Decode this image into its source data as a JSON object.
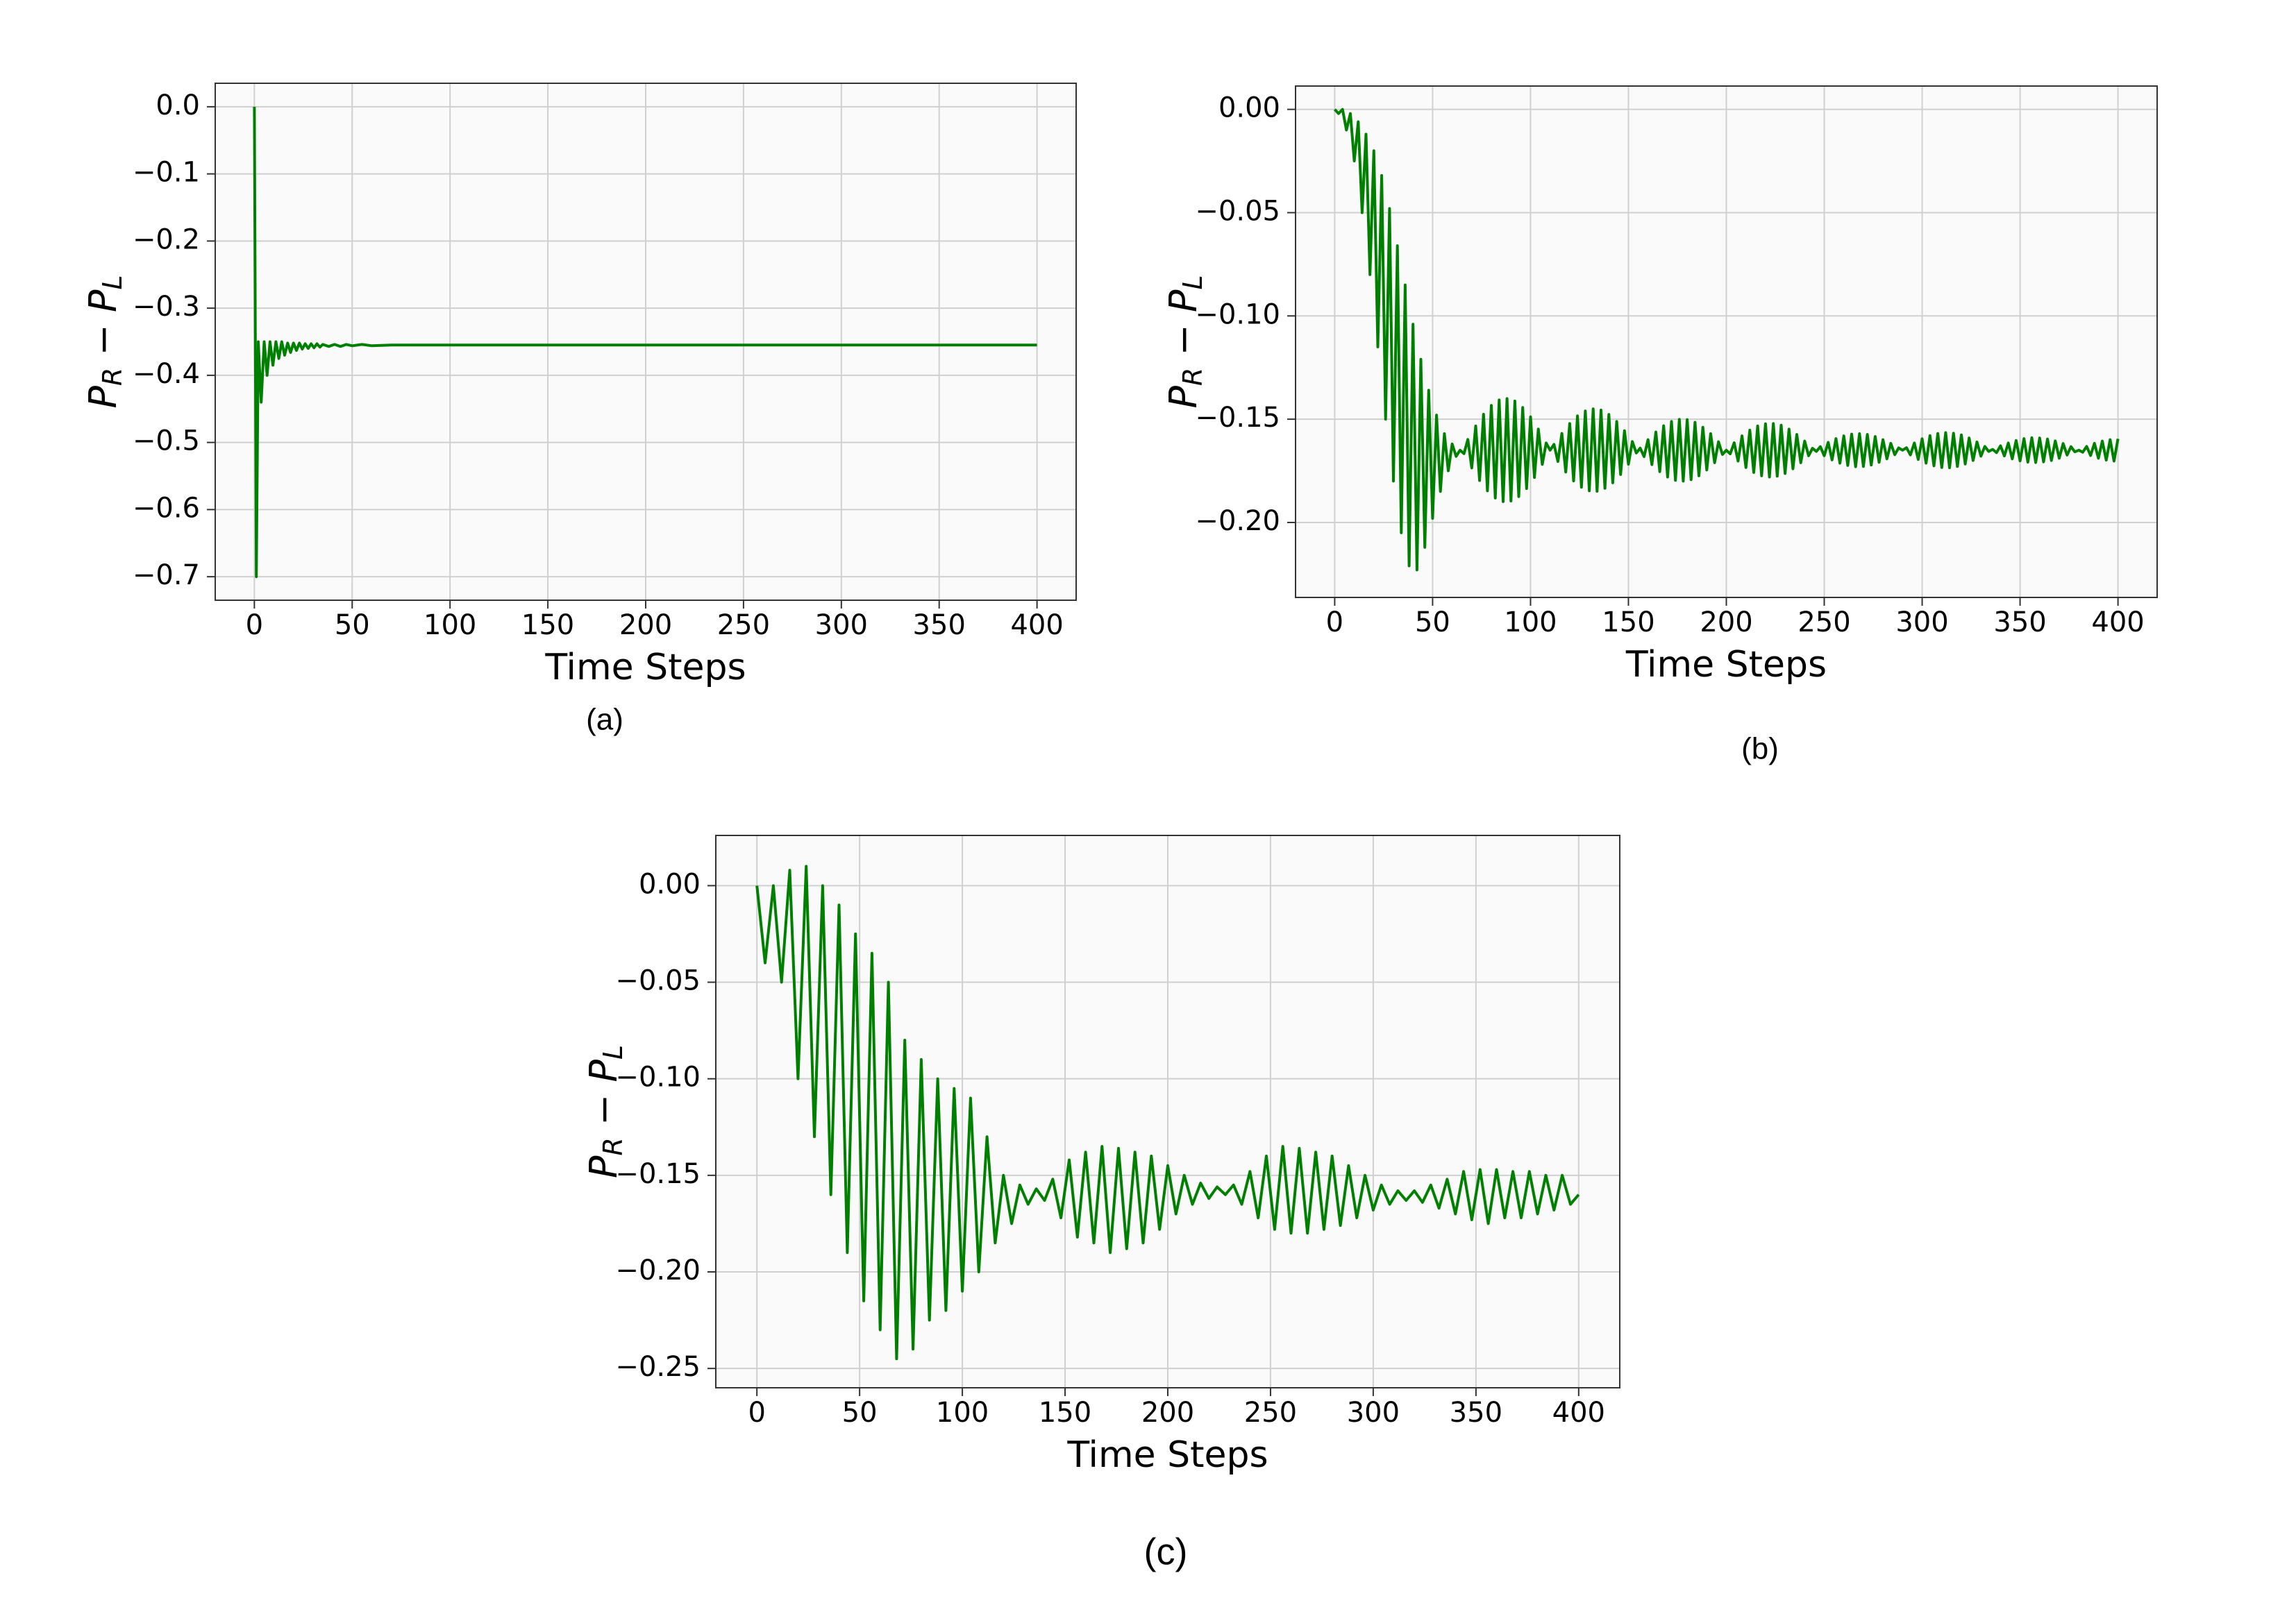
{
  "chart_data": [
    {
      "type": "line",
      "caption": "(a)",
      "xlabel": "Time Steps",
      "ylabel": "P_R − P_L",
      "color": "#008000",
      "grid": true,
      "xlim": [
        -20,
        420
      ],
      "ylim": [
        -0.735,
        0.035
      ],
      "xticks": [
        0,
        50,
        100,
        150,
        200,
        250,
        300,
        350,
        400
      ],
      "yticks": [
        {
          "value": 0,
          "label": "0.0"
        },
        {
          "value": -0.1,
          "label": "−0.1"
        },
        {
          "value": -0.2,
          "label": "−0.2"
        },
        {
          "value": -0.3,
          "label": "−0.3"
        },
        {
          "value": -0.4,
          "label": "−0.4"
        },
        {
          "value": -0.5,
          "label": "−0.5"
        },
        {
          "value": -0.6,
          "label": "−0.6"
        },
        {
          "value": -0.7,
          "label": "−0.7"
        }
      ],
      "x": [
        0,
        1,
        2,
        3.5,
        5,
        6.5,
        8,
        9.5,
        11,
        12.5,
        14,
        15.5,
        17,
        18.5,
        20,
        21.5,
        23,
        24.5,
        26,
        27.5,
        29,
        30.5,
        32,
        33.5,
        35,
        38,
        41,
        44,
        47,
        50,
        55,
        60,
        70,
        80,
        100,
        150,
        200,
        250,
        300,
        350,
        400
      ],
      "values": [
        0,
        -0.7,
        -0.35,
        -0.44,
        -0.35,
        -0.4,
        -0.35,
        -0.385,
        -0.35,
        -0.375,
        -0.35,
        -0.37,
        -0.352,
        -0.366,
        -0.352,
        -0.363,
        -0.352,
        -0.361,
        -0.353,
        -0.36,
        -0.353,
        -0.359,
        -0.353,
        -0.358,
        -0.354,
        -0.357,
        -0.354,
        -0.357,
        -0.354,
        -0.356,
        -0.354,
        -0.356,
        -0.355,
        -0.355,
        -0.355,
        -0.355,
        -0.355,
        -0.355,
        -0.355,
        -0.355,
        -0.355
      ]
    },
    {
      "type": "line",
      "caption": "(b)",
      "xlabel": "Time Steps",
      "ylabel": "P_R − P_L",
      "color": "#008000",
      "grid": true,
      "xlim": [
        -20,
        420
      ],
      "ylim": [
        -0.2363,
        0.0113
      ],
      "xticks": [
        0,
        50,
        100,
        150,
        200,
        250,
        300,
        350,
        400
      ],
      "yticks": [
        {
          "value": 0,
          "label": "0.00"
        },
        {
          "value": -0.05,
          "label": "−0.05"
        },
        {
          "value": -0.1,
          "label": "−0.10"
        },
        {
          "value": -0.15,
          "label": "−0.15"
        },
        {
          "value": -0.2,
          "label": "−0.20"
        }
      ],
      "x": [
        0,
        2,
        4,
        6,
        8,
        10,
        12,
        14,
        16,
        18,
        20,
        22,
        24,
        26,
        28,
        30,
        32,
        34,
        36,
        38,
        40,
        42,
        44,
        46,
        48,
        50,
        52,
        54,
        56,
        58,
        60,
        62,
        64,
        66,
        68,
        70,
        72,
        74,
        76,
        78,
        80,
        82,
        84,
        86,
        88,
        90,
        92,
        94,
        96,
        98,
        100,
        102,
        104,
        106,
        108,
        110,
        112,
        114,
        116,
        118,
        120,
        122,
        124,
        126,
        128,
        130,
        132,
        134,
        136,
        138,
        140,
        142,
        144,
        146,
        148,
        150,
        152,
        154,
        156,
        158,
        160,
        162,
        164,
        166,
        168,
        170,
        172,
        174,
        176,
        178,
        180,
        182,
        184,
        186,
        188,
        190,
        192,
        194,
        196,
        198,
        200,
        202,
        204,
        206,
        208,
        210,
        212,
        214,
        216,
        218,
        220,
        222,
        224,
        226,
        228,
        230,
        232,
        234,
        236,
        238,
        240,
        242,
        244,
        246,
        248,
        250,
        252,
        254,
        256,
        258,
        260,
        262,
        264,
        266,
        268,
        270,
        272,
        274,
        276,
        278,
        280,
        282,
        284,
        286,
        288,
        290,
        292,
        294,
        296,
        298,
        300,
        302,
        304,
        306,
        308,
        310,
        312,
        314,
        316,
        318,
        320,
        322,
        324,
        326,
        328,
        330,
        332,
        334,
        336,
        338,
        340,
        342,
        344,
        346,
        348,
        350,
        352,
        354,
        356,
        358,
        360,
        362,
        364,
        366,
        368,
        370,
        372,
        374,
        376,
        378,
        380,
        382,
        384,
        386,
        388,
        390,
        392,
        394,
        396,
        398,
        400
      ],
      "values": [
        0,
        -0.002,
        0,
        -0.01,
        -0.002,
        -0.025,
        -0.006,
        -0.05,
        -0.012,
        -0.08,
        -0.02,
        -0.115,
        -0.032,
        -0.15,
        -0.048,
        -0.18,
        -0.066,
        -0.205,
        -0.085,
        -0.221,
        -0.104,
        -0.223,
        -0.121,
        -0.212,
        -0.136,
        -0.198,
        -0.148,
        -0.185,
        -0.157,
        -0.175,
        -0.162,
        -0.168,
        -0.165,
        -0.1667,
        -0.1598,
        -0.1736,
        -0.1533,
        -0.1797,
        -0.1476,
        -0.1847,
        -0.1433,
        -0.1882,
        -0.1407,
        -0.1899,
        -0.14,
        -0.1896,
        -0.1412,
        -0.1875,
        -0.1443,
        -0.1836,
        -0.1489,
        -0.1782,
        -0.1548,
        -0.1719,
        -0.1615,
        -0.165,
        -0.1622,
        -0.1705,
        -0.1569,
        -0.1756,
        -0.1521,
        -0.1799,
        -0.1484,
        -0.183,
        -0.146,
        -0.1847,
        -0.145,
        -0.1849,
        -0.1456,
        -0.1835,
        -0.1477,
        -0.1808,
        -0.1511,
        -0.1768,
        -0.1556,
        -0.1718,
        -0.1608,
        -0.1664,
        -0.164,
        -0.1681,
        -0.1599,
        -0.172,
        -0.1562,
        -0.1754,
        -0.1532,
        -0.178,
        -0.1511,
        -0.1796,
        -0.1501,
        -0.18,
        -0.1502,
        -0.1793,
        -0.1515,
        -0.1774,
        -0.1539,
        -0.1746,
        -0.157,
        -0.1711,
        -0.1609,
        -0.1671,
        -0.165,
        -0.1668,
        -0.1614,
        -0.1703,
        -0.1581,
        -0.1734,
        -0.1553,
        -0.1758,
        -0.1533,
        -0.1774,
        -0.1522,
        -0.178,
        -0.1521,
        -0.1776,
        -0.1529,
        -0.1763,
        -0.1548,
        -0.174,
        -0.1574,
        -0.1711,
        -0.1606,
        -0.1677,
        -0.1641,
        -0.1656,
        -0.1633,
        -0.1677,
        -0.1612,
        -0.1697,
        -0.1594,
        -0.1713,
        -0.1581,
        -0.1724,
        -0.1572,
        -0.173,
        -0.157,
        -0.1729,
        -0.1574,
        -0.1722,
        -0.1584,
        -0.1709,
        -0.1599,
        -0.1692,
        -0.1617,
        -0.1672,
        -0.1639,
        -0.165,
        -0.1638,
        -0.1673,
        -0.1615,
        -0.1695,
        -0.1595,
        -0.1713,
        -0.158,
        -0.1726,
        -0.1569,
        -0.1734,
        -0.1565,
        -0.1735,
        -0.1568,
        -0.1729,
        -0.1576,
        -0.1717,
        -0.1591,
        -0.17,
        -0.161,
        -0.1679,
        -0.1632,
        -0.1656,
        -0.1646,
        -0.1662,
        -0.1629,
        -0.1678,
        -0.1615,
        -0.1692,
        -0.1603,
        -0.1702,
        -0.1594,
        -0.1708,
        -0.159,
        -0.171,
        -0.1591,
        -0.1707,
        -0.1596,
        -0.17,
        -0.1605,
        -0.1689,
        -0.1618,
        -0.1674,
        -0.1633,
        -0.1658,
        -0.165,
        -0.166,
        -0.1632,
        -0.1676,
        -0.1617,
        -0.1689,
        -0.1606,
        -0.1698,
        -0.1599,
        -0.1703,
        -0.1595
      ]
    },
    {
      "type": "line",
      "caption": "(c)",
      "xlabel": "Time Steps",
      "ylabel": "P_R − P_L",
      "color": "#008000",
      "grid": true,
      "xlim": [
        -20,
        420
      ],
      "ylim": [
        -0.26,
        0.026
      ],
      "xticks": [
        0,
        50,
        100,
        150,
        200,
        250,
        300,
        350,
        400
      ],
      "yticks": [
        {
          "value": 0,
          "label": "0.00"
        },
        {
          "value": -0.05,
          "label": "−0.05"
        },
        {
          "value": -0.1,
          "label": "−0.10"
        },
        {
          "value": -0.15,
          "label": "−0.15"
        },
        {
          "value": -0.2,
          "label": "−0.20"
        },
        {
          "value": -0.25,
          "label": "−0.25"
        }
      ],
      "x": [
        0,
        4,
        8,
        12,
        16,
        20,
        24,
        28,
        32,
        36,
        40,
        44,
        48,
        52,
        56,
        60,
        64,
        68,
        72,
        76,
        80,
        84,
        88,
        92,
        96,
        100,
        104,
        108,
        112,
        116,
        120,
        124,
        128,
        132,
        136,
        140,
        144,
        148,
        152,
        156,
        160,
        164,
        168,
        172,
        176,
        180,
        184,
        188,
        192,
        196,
        200,
        204,
        208,
        212,
        216,
        220,
        224,
        228,
        232,
        236,
        240,
        244,
        248,
        252,
        256,
        260,
        264,
        268,
        272,
        276,
        280,
        284,
        288,
        292,
        296,
        300,
        304,
        308,
        312,
        316,
        320,
        324,
        328,
        332,
        336,
        340,
        344,
        348,
        352,
        356,
        360,
        364,
        368,
        372,
        376,
        380,
        384,
        388,
        392,
        396,
        400
      ],
      "values": [
        0,
        -0.04,
        0,
        -0.05,
        0.008,
        -0.1,
        0.01,
        -0.13,
        0,
        -0.16,
        -0.01,
        -0.19,
        -0.025,
        -0.215,
        -0.035,
        -0.23,
        -0.05,
        -0.245,
        -0.08,
        -0.24,
        -0.09,
        -0.225,
        -0.1,
        -0.22,
        -0.105,
        -0.21,
        -0.11,
        -0.2,
        -0.13,
        -0.185,
        -0.15,
        -0.175,
        -0.155,
        -0.165,
        -0.157,
        -0.163,
        -0.152,
        -0.172,
        -0.142,
        -0.182,
        -0.138,
        -0.185,
        -0.135,
        -0.19,
        -0.136,
        -0.188,
        -0.138,
        -0.185,
        -0.14,
        -0.178,
        -0.145,
        -0.17,
        -0.15,
        -0.165,
        -0.154,
        -0.162,
        -0.156,
        -0.16,
        -0.155,
        -0.165,
        -0.148,
        -0.172,
        -0.14,
        -0.178,
        -0.135,
        -0.18,
        -0.136,
        -0.18,
        -0.138,
        -0.178,
        -0.14,
        -0.176,
        -0.145,
        -0.172,
        -0.15,
        -0.168,
        -0.155,
        -0.165,
        -0.158,
        -0.163,
        -0.158,
        -0.164,
        -0.155,
        -0.167,
        -0.152,
        -0.17,
        -0.148,
        -0.173,
        -0.147,
        -0.175,
        -0.147,
        -0.172,
        -0.148,
        -0.172,
        -0.148,
        -0.17,
        -0.15,
        -0.168,
        -0.15,
        -0.165,
        -0.16
      ]
    }
  ]
}
